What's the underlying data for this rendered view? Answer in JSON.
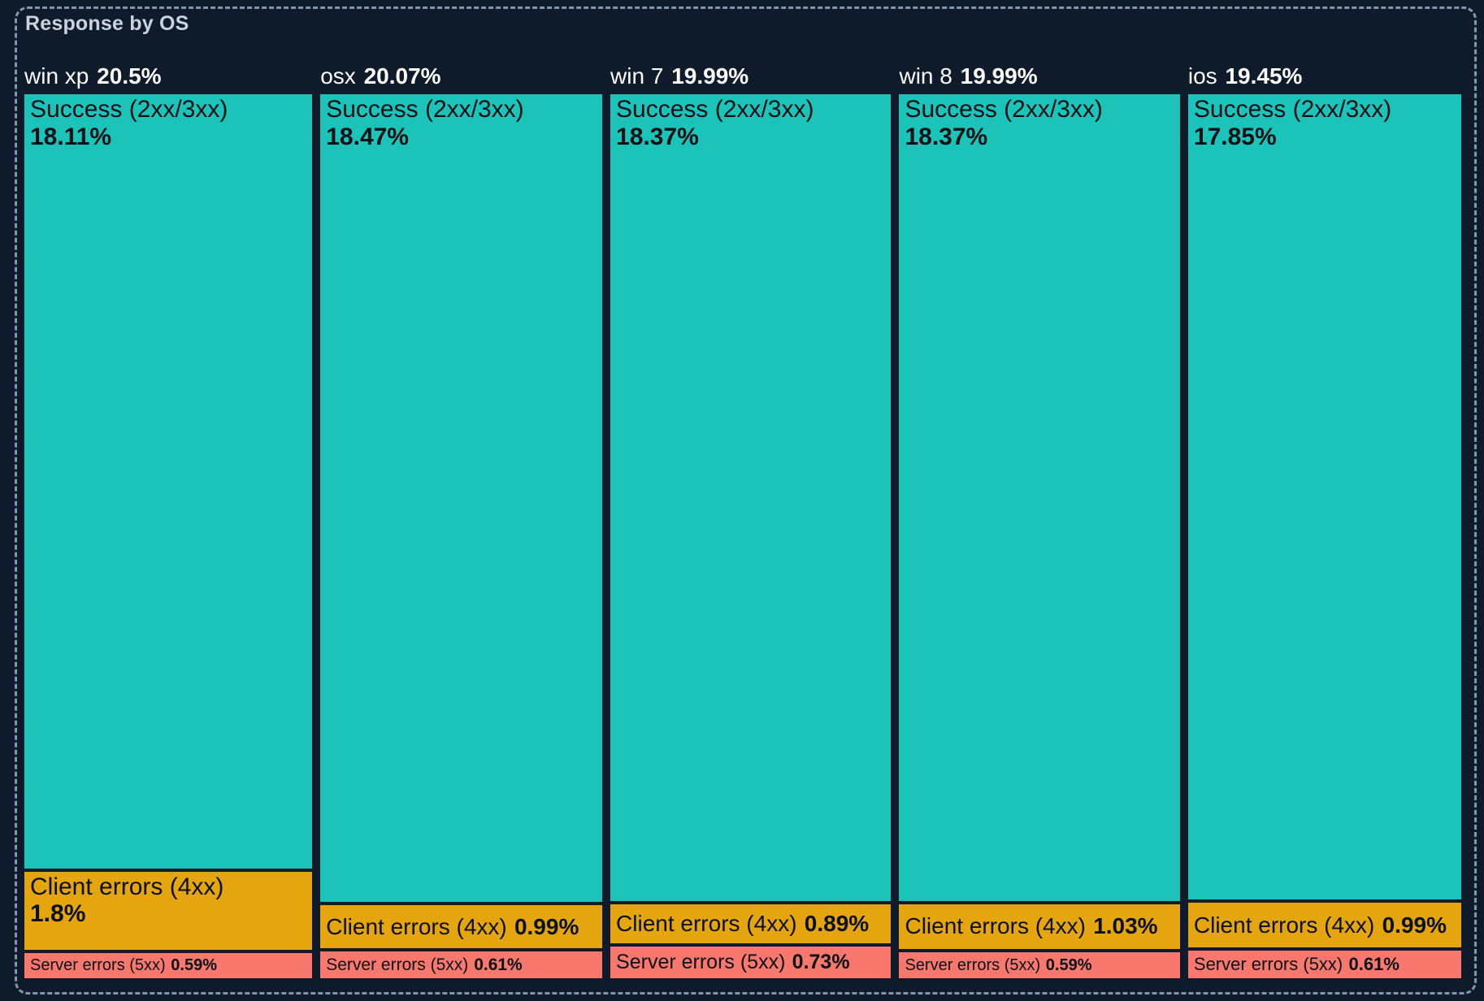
{
  "title": "Response by OS",
  "colors": {
    "background": "#0f1a2b",
    "panel_border": "#8496ad",
    "title_text": "#c9d3e0",
    "header_text": "#ffffff",
    "segment_text": "#0a1016",
    "success": "#1bc3b9",
    "client_errors": "#e5a50f",
    "server_errors": "#f8786e"
  },
  "chart_data": {
    "type": "treemap",
    "title": "Response by OS",
    "layout": "columns-per-os, segment heights proportional to percent of total",
    "legend": "none",
    "groups": [
      {
        "os": "win xp",
        "total": 20.5,
        "total_pct": "20.5%",
        "segments": [
          {
            "key": "success",
            "label": "Success (2xx/3xx)",
            "value": 18.11,
            "pct": "18.11%"
          },
          {
            "key": "client_errors",
            "label": "Client errors (4xx)",
            "value": 1.8,
            "pct": "1.8%"
          },
          {
            "key": "server_errors",
            "label": "Server errors (5xx)",
            "value": 0.59,
            "pct": "0.59%"
          }
        ]
      },
      {
        "os": "osx",
        "total": 20.07,
        "total_pct": "20.07%",
        "segments": [
          {
            "key": "success",
            "label": "Success (2xx/3xx)",
            "value": 18.47,
            "pct": "18.47%"
          },
          {
            "key": "client_errors",
            "label": "Client errors (4xx)",
            "value": 0.99,
            "pct": "0.99%"
          },
          {
            "key": "server_errors",
            "label": "Server errors (5xx)",
            "value": 0.61,
            "pct": "0.61%"
          }
        ]
      },
      {
        "os": "win 7",
        "total": 19.99,
        "total_pct": "19.99%",
        "segments": [
          {
            "key": "success",
            "label": "Success (2xx/3xx)",
            "value": 18.37,
            "pct": "18.37%"
          },
          {
            "key": "client_errors",
            "label": "Client errors (4xx)",
            "value": 0.89,
            "pct": "0.89%"
          },
          {
            "key": "server_errors",
            "label": "Server errors (5xx)",
            "value": 0.73,
            "pct": "0.73%"
          }
        ]
      },
      {
        "os": "win 8",
        "total": 19.99,
        "total_pct": "19.99%",
        "segments": [
          {
            "key": "success",
            "label": "Success (2xx/3xx)",
            "value": 18.37,
            "pct": "18.37%"
          },
          {
            "key": "client_errors",
            "label": "Client errors (4xx)",
            "value": 1.03,
            "pct": "1.03%"
          },
          {
            "key": "server_errors",
            "label": "Server errors (5xx)",
            "value": 0.59,
            "pct": "0.59%"
          }
        ]
      },
      {
        "os": "ios",
        "total": 19.45,
        "total_pct": "19.45%",
        "segments": [
          {
            "key": "success",
            "label": "Success (2xx/3xx)",
            "value": 17.85,
            "pct": "17.85%"
          },
          {
            "key": "client_errors",
            "label": "Client errors (4xx)",
            "value": 0.99,
            "pct": "0.99%"
          },
          {
            "key": "server_errors",
            "label": "Server errors (5xx)",
            "value": 0.61,
            "pct": "0.61%"
          }
        ]
      }
    ]
  }
}
